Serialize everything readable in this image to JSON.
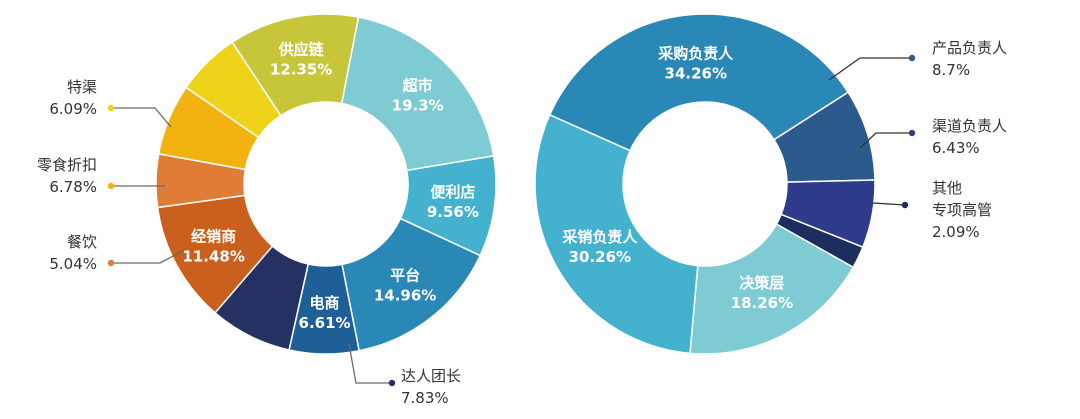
{
  "chart_data": [
    {
      "type": "pie",
      "categories": [
        "超市",
        "便利店",
        "平台",
        "电商",
        "达人团长",
        "经销商",
        "餐饮",
        "零食折扣",
        "特渠",
        "供应链"
      ],
      "values": [
        19.3,
        9.56,
        14.96,
        6.61,
        7.83,
        11.48,
        5.04,
        6.78,
        6.09,
        12.35
      ],
      "value_labels": [
        "19.3%",
        "9.56%",
        "14.96%",
        "6.61%",
        "7.83%",
        "11.48%",
        "5.04%",
        "6.78%",
        "6.09%",
        "12.35%"
      ],
      "colors": [
        "#7ecbd4",
        "#44b2cf",
        "#2a88b7",
        "#1f5f98",
        "#253163",
        "#c9601e",
        "#e07c35",
        "#f2b311",
        "#efd31a",
        "#c7c63b"
      ],
      "label_position": [
        "inside",
        "inside",
        "inside",
        "inside",
        "outside",
        "inside",
        "outside",
        "outside",
        "outside",
        "inside"
      ],
      "hole": "donut"
    },
    {
      "type": "pie",
      "categories": [
        "采购负责人",
        "产品负责人",
        "渠道负责人",
        "其他\n专项高管",
        "决策层",
        "采销负责人"
      ],
      "values": [
        34.26,
        8.7,
        6.43,
        2.09,
        18.26,
        30.26
      ],
      "value_labels": [
        "34.26%",
        "8.7%",
        "6.43%",
        "2.09%",
        "18.26%",
        "30.26%"
      ],
      "colors": [
        "#2a88b7",
        "#2c5a8c",
        "#2f3b8b",
        "#1c2e5e",
        "#7ecbd4",
        "#44b2cf"
      ],
      "label_position": [
        "inside",
        "outside",
        "outside",
        "outside",
        "inside",
        "inside"
      ],
      "hole": "donut"
    }
  ]
}
